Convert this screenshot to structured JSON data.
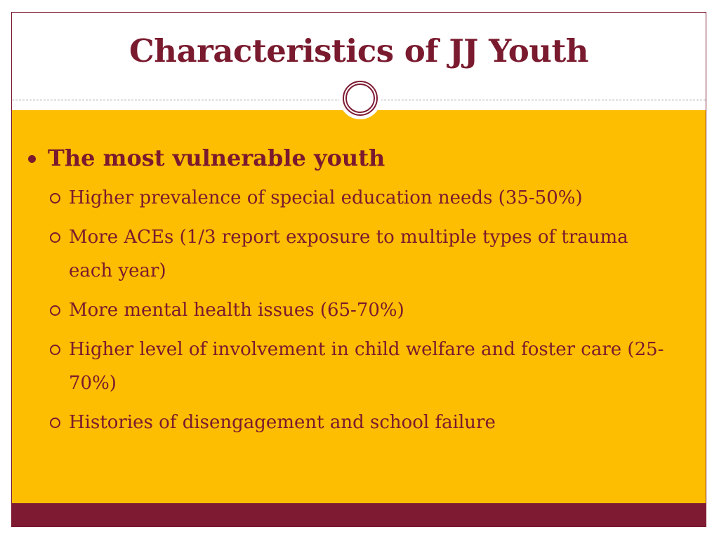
{
  "slide": {
    "title": "Characteristics of JJ Youth",
    "colors": {
      "accent": "#7a1a2e",
      "background": "#fdbd00",
      "footer": "#7e1b33"
    },
    "main_bullet": "The most vulnerable youth",
    "sub_bullets": [
      "Higher prevalence of special education needs (35-50%)",
      "More ACEs (1/3 report exposure to multiple types of trauma each year)",
      "More mental health issues (65-70%)",
      "Higher level of involvement in child welfare and foster care (25-70%)",
      "Histories of disengagement and school failure"
    ]
  }
}
